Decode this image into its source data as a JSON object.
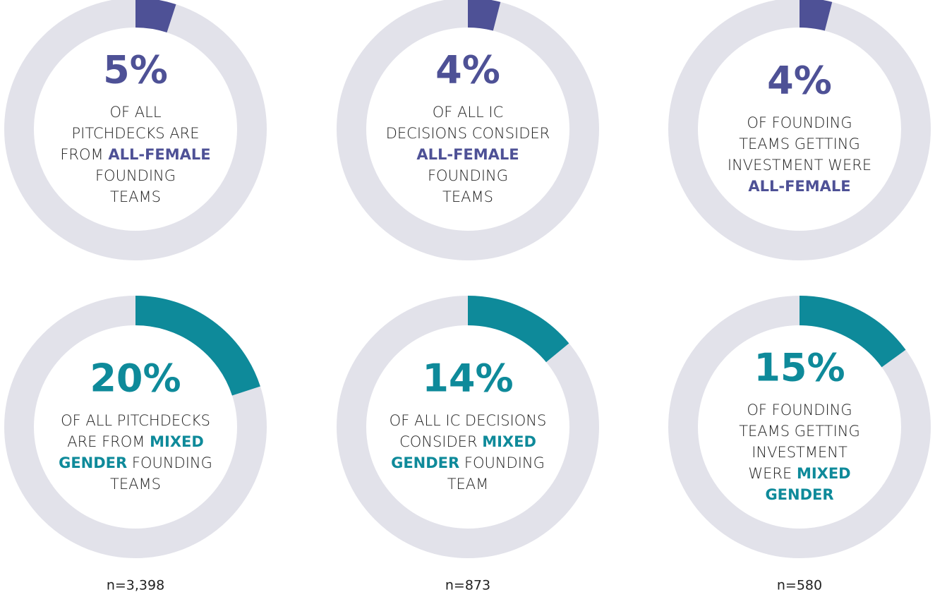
{
  "chart_data": [
    {
      "type": "donut",
      "values": [
        5
      ],
      "value_labels": [
        "5%"
      ],
      "ylim": [
        0,
        100
      ],
      "color": "#4e5196",
      "caption": [
        [
          {
            "text": "OF ALL"
          }
        ],
        [
          {
            "text": "PITCHDECKS ARE"
          }
        ],
        [
          {
            "text": "FROM "
          },
          {
            "text": "ALL-FEMALE",
            "highlight": true
          }
        ],
        [
          {
            "text": "FOUNDING"
          }
        ],
        [
          {
            "text": "TEAMS"
          }
        ]
      ]
    },
    {
      "type": "donut",
      "values": [
        4
      ],
      "value_labels": [
        "4%"
      ],
      "ylim": [
        0,
        100
      ],
      "color": "#4e5196",
      "caption": [
        [
          {
            "text": "OF ALL IC"
          }
        ],
        [
          {
            "text": "DECISIONS CONSIDER"
          }
        ],
        [
          {
            "text": "ALL-FEMALE",
            "highlight": true
          }
        ],
        [
          {
            "text": "FOUNDING"
          }
        ],
        [
          {
            "text": "TEAMS"
          }
        ]
      ]
    },
    {
      "type": "donut",
      "values": [
        4
      ],
      "value_labels": [
        "4%"
      ],
      "ylim": [
        0,
        100
      ],
      "color": "#4e5196",
      "caption": [
        [
          {
            "text": "OF FOUNDING"
          }
        ],
        [
          {
            "text": "TEAMS GETTING"
          }
        ],
        [
          {
            "text": "INVESTMENT WERE"
          }
        ],
        [
          {
            "text": "ALL-FEMALE",
            "highlight": true
          }
        ]
      ]
    },
    {
      "type": "donut",
      "values": [
        20
      ],
      "value_labels": [
        "20%"
      ],
      "ylim": [
        0,
        100
      ],
      "color": "#0e8a9a",
      "caption": [
        [
          {
            "text": "OF ALL PITCHDECKS"
          }
        ],
        [
          {
            "text": "ARE FROM "
          },
          {
            "text": "MIXED",
            "highlight": true
          }
        ],
        [
          {
            "text": "GENDER",
            "highlight": true
          },
          {
            "text": " FOUNDING"
          }
        ],
        [
          {
            "text": "TEAMS"
          }
        ]
      ]
    },
    {
      "type": "donut",
      "values": [
        14
      ],
      "value_labels": [
        "14%"
      ],
      "ylim": [
        0,
        100
      ],
      "color": "#0e8a9a",
      "caption": [
        [
          {
            "text": "OF ALL IC DECISIONS"
          }
        ],
        [
          {
            "text": "CONSIDER "
          },
          {
            "text": "MIXED",
            "highlight": true
          }
        ],
        [
          {
            "text": "GENDER",
            "highlight": true
          },
          {
            "text": " FOUNDING"
          }
        ],
        [
          {
            "text": "TEAM"
          }
        ]
      ]
    },
    {
      "type": "donut",
      "values": [
        15
      ],
      "value_labels": [
        "15%"
      ],
      "ylim": [
        0,
        100
      ],
      "color": "#0e8a9a",
      "caption": [
        [
          {
            "text": "OF FOUNDING"
          }
        ],
        [
          {
            "text": "TEAMS GETTING"
          }
        ],
        [
          {
            "text": "INVESTMENT"
          }
        ],
        [
          {
            "text": "WERE "
          },
          {
            "text": "MIXED",
            "highlight": true
          }
        ],
        [
          {
            "text": "GENDER",
            "highlight": true
          }
        ]
      ]
    }
  ],
  "sample_sizes": [
    "n=3,398",
    "n=873",
    "n=580"
  ]
}
